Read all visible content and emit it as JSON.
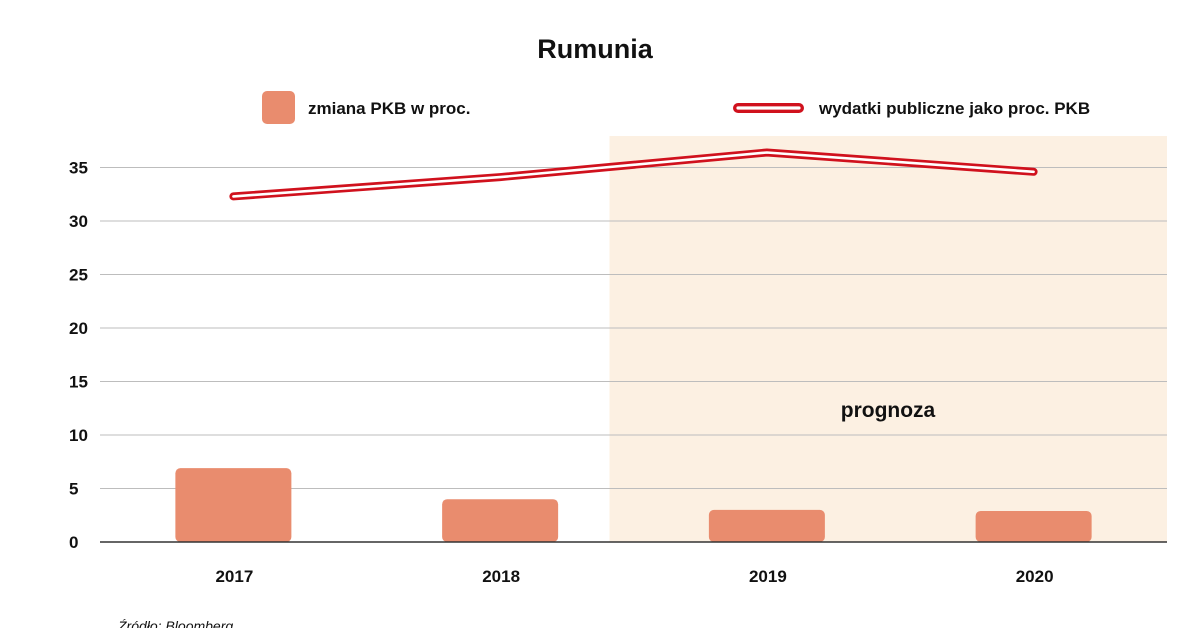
{
  "chart_data": {
    "type": "bar",
    "title": "Rumunia",
    "categories": [
      "2017",
      "2018",
      "2019",
      "2020"
    ],
    "series": [
      {
        "name": "zmiana PKB w proc.",
        "kind": "bar",
        "color": "#E98C6E",
        "values": [
          6.9,
          4.0,
          3.0,
          2.9
        ]
      },
      {
        "name": "wydatki publiczne jako proc. PKB",
        "kind": "line",
        "color": "#D0111D",
        "values": [
          32.3,
          34.1,
          36.4,
          34.6
        ]
      }
    ],
    "yticks": [
      "0",
      "5",
      "10",
      "15",
      "20",
      "25",
      "30",
      "35"
    ],
    "ylim": [
      0,
      37
    ],
    "grid": true,
    "legend_placement": "top",
    "forecast": {
      "label": "prognoza",
      "from_category": "2019",
      "shade_color": "#FCF0E2"
    },
    "source": "Źródło: Bloomberg"
  }
}
